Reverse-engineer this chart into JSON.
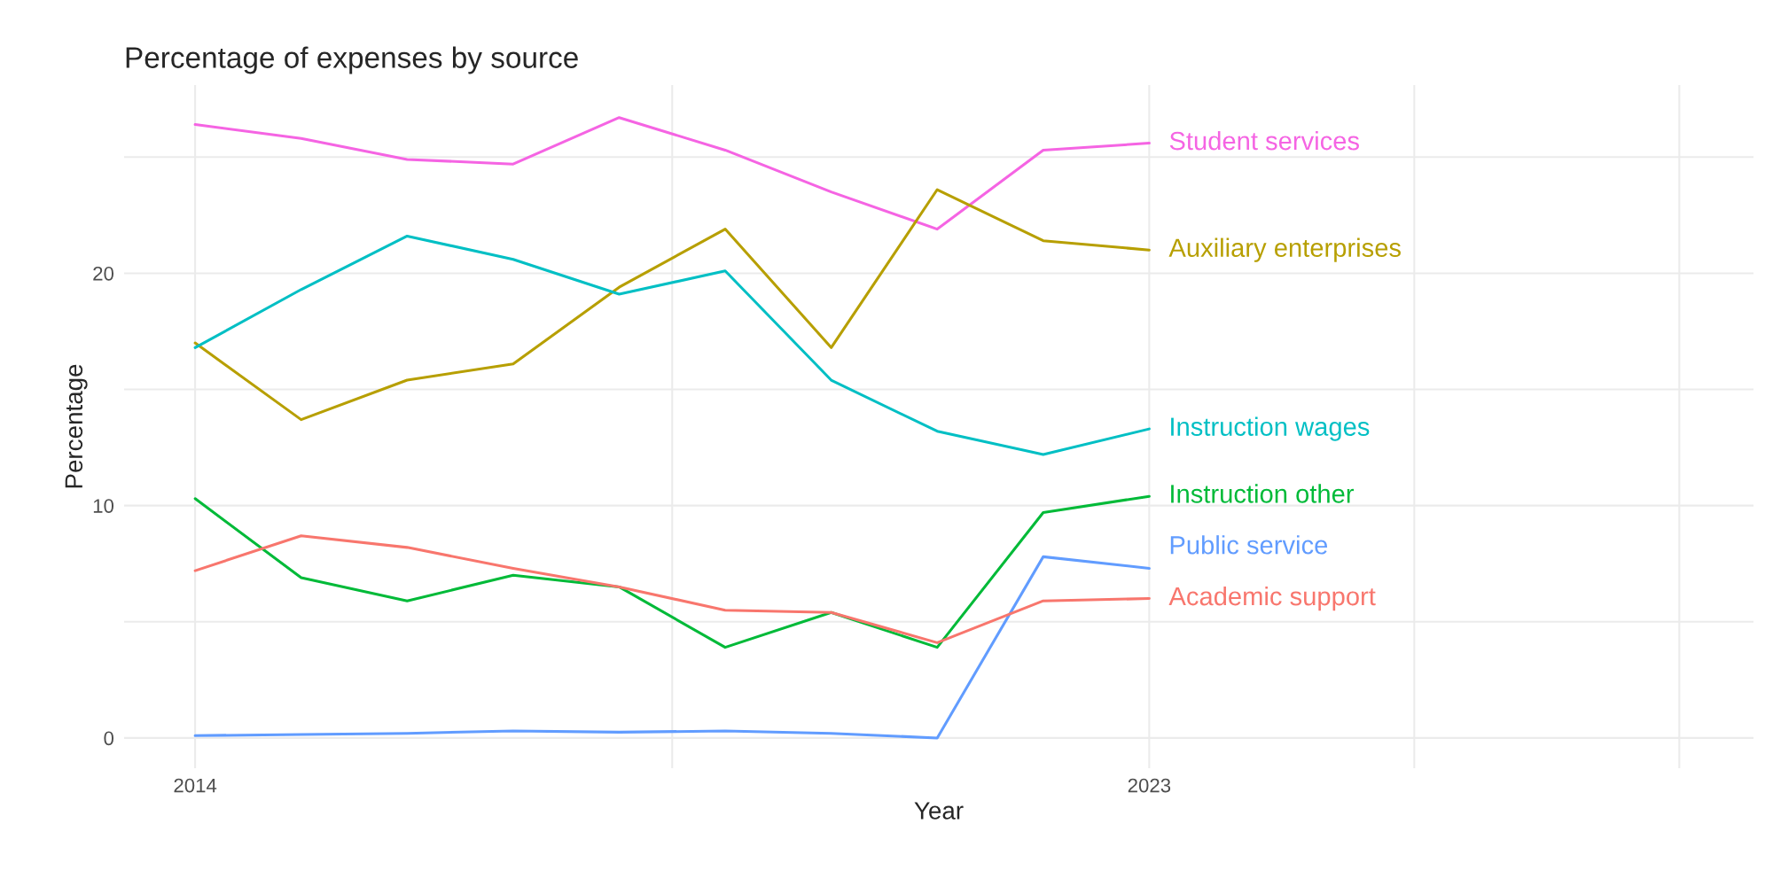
{
  "chart_data": {
    "type": "line",
    "title": "Percentage of expenses by source",
    "xlabel": "Year",
    "ylabel": "Percentage",
    "x": [
      2014,
      2015,
      2016,
      2017,
      2018,
      2019,
      2020,
      2021,
      2022,
      2023
    ],
    "series": [
      {
        "name": "Student services",
        "color": "#f564e3",
        "values": [
          26.4,
          25.8,
          24.9,
          24.7,
          26.7,
          25.3,
          23.5,
          21.9,
          25.3,
          25.6
        ]
      },
      {
        "name": "Auxiliary enterprises",
        "color": "#b79f00",
        "values": [
          17.0,
          13.7,
          15.4,
          16.1,
          19.4,
          21.9,
          16.8,
          23.6,
          21.4,
          21.0
        ]
      },
      {
        "name": "Instruction wages",
        "color": "#00bfc4",
        "values": [
          16.8,
          19.3,
          21.6,
          20.6,
          19.1,
          20.1,
          15.4,
          13.2,
          12.2,
          13.3
        ]
      },
      {
        "name": "Instruction other",
        "color": "#00ba38",
        "values": [
          10.3,
          6.9,
          5.9,
          7.0,
          6.5,
          3.9,
          5.4,
          3.9,
          9.7,
          10.4
        ]
      },
      {
        "name": "Public service",
        "color": "#619cff",
        "values": [
          0.1,
          0.15,
          0.2,
          0.3,
          0.25,
          0.3,
          0.2,
          0.0,
          7.8,
          7.3
        ]
      },
      {
        "name": "Academic support",
        "color": "#f8766d",
        "values": [
          7.2,
          8.7,
          8.2,
          7.3,
          6.5,
          5.5,
          5.4,
          4.1,
          5.9,
          6.0
        ]
      }
    ],
    "xlim": [
      2013.33,
      2028.7
    ],
    "xticks": [
      2014,
      {
        "value": 2018.5,
        "label": null
      },
      2023,
      {
        "value": 2025.5,
        "label": null
      },
      {
        "value": 2028,
        "label": null
      }
    ],
    "ylim": [
      -1.3,
      28.1
    ],
    "yticks": [
      0,
      {
        "value": 5,
        "label": null
      },
      10,
      {
        "value": 15,
        "label": null
      },
      20,
      {
        "value": 25,
        "label": null
      }
    ],
    "grid": true,
    "legend": false,
    "line_style": "solid",
    "marker": "none"
  }
}
